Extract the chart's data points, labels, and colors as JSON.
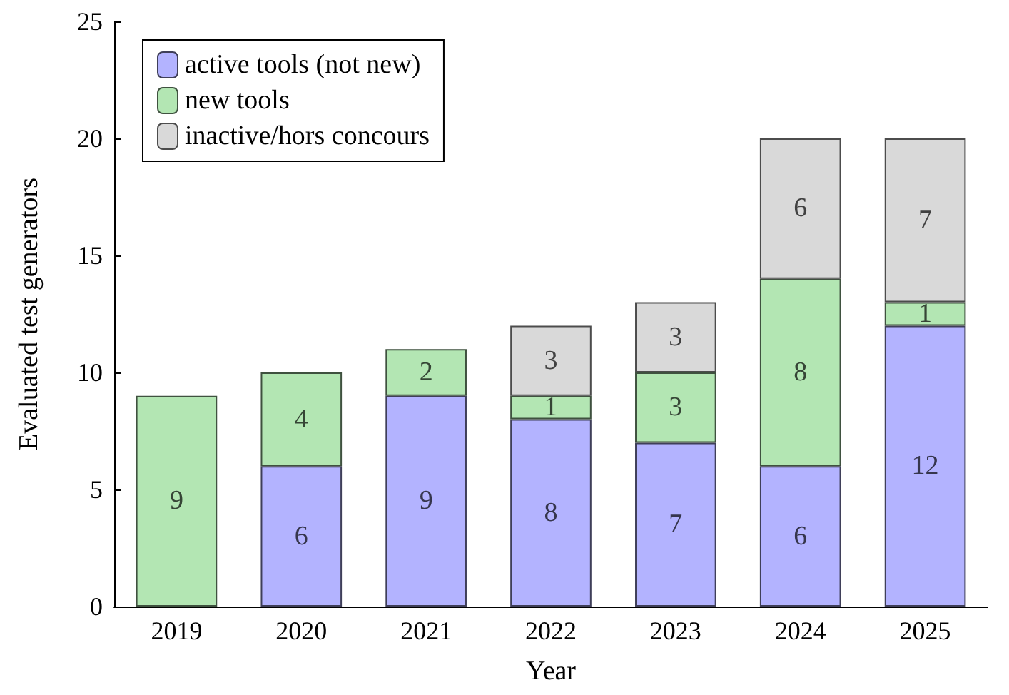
{
  "chart_data": {
    "type": "bar",
    "xlabel": "Year",
    "ylabel": "Evaluated test generators",
    "categories": [
      "2019",
      "2020",
      "2021",
      "2022",
      "2023",
      "2024",
      "2025"
    ],
    "series": [
      {
        "name": "active tools (not new)",
        "color": "#b3b3ff",
        "values": [
          null,
          6,
          9,
          8,
          7,
          6,
          12
        ]
      },
      {
        "name": "new tools",
        "color": "#b3e6b3",
        "values": [
          9,
          4,
          2,
          1,
          3,
          8,
          1
        ]
      },
      {
        "name": "inactive/hors concours",
        "color": "#d9d9d9",
        "values": [
          null,
          null,
          null,
          3,
          3,
          6,
          7
        ]
      }
    ],
    "stacked": true,
    "ylim": [
      0,
      25
    ],
    "yticks": [
      0,
      5,
      10,
      15,
      20,
      25
    ],
    "grid": false,
    "legend": "top left",
    "data_labels": true
  }
}
